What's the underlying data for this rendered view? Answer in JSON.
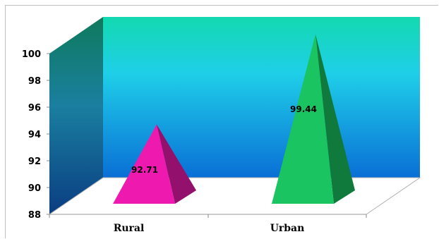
{
  "chart_data": {
    "type": "bar",
    "style": "3d-pyramid",
    "title": "",
    "xlabel": "",
    "ylabel": "",
    "categories": [
      "Rural",
      "Urban"
    ],
    "values": [
      92.71,
      99.44
    ],
    "data_labels": [
      "92.71",
      "99.44"
    ],
    "ylim": [
      88,
      100
    ],
    "yticks": [
      "88",
      "90",
      "92",
      "94",
      "96",
      "98",
      "100"
    ],
    "grid": false,
    "legend": "none",
    "colors": {
      "Rural": "#ee1ab0",
      "Urban": "#19c461",
      "back_wall_top": "#13d9b0",
      "back_wall_mid": "#1fcfe8",
      "back_wall_bottom": "#0a6fd6",
      "side_wall_top": "#0f7a5c",
      "side_wall_bottom": "#0a3d82"
    }
  }
}
